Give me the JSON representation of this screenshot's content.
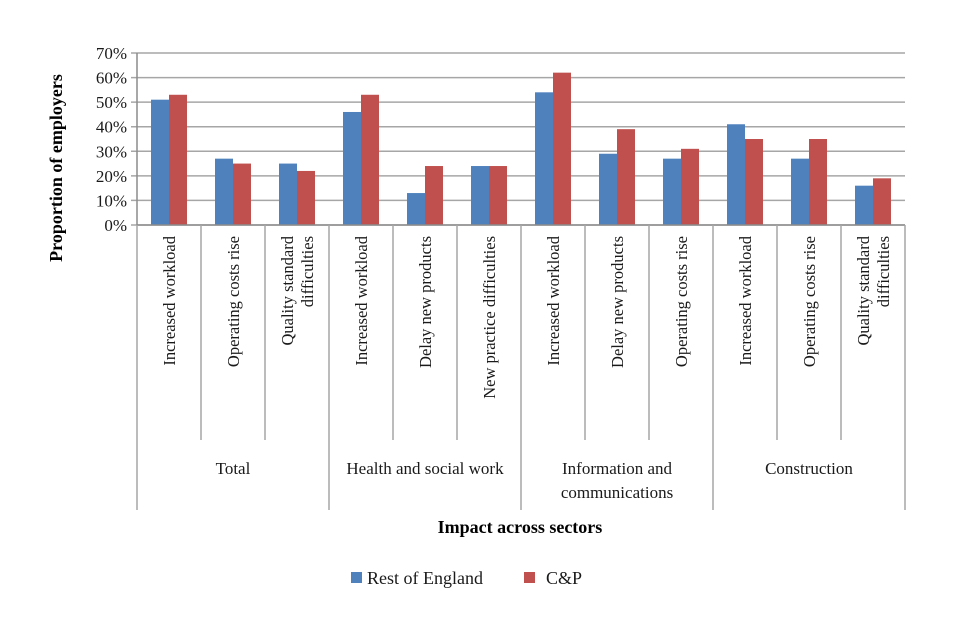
{
  "chart_data": {
    "type": "bar",
    "title": "",
    "xlabel": "Impact across sectors",
    "ylabel": "Proportion of employers",
    "ylim": [
      0,
      70
    ],
    "yticks": [
      "0%",
      "10%",
      "20%",
      "30%",
      "40%",
      "50%",
      "60%",
      "70%"
    ],
    "ytick_values": [
      0,
      10,
      20,
      30,
      40,
      50,
      60,
      70
    ],
    "grid": true,
    "legend_position": "bottom",
    "groups": [
      {
        "label": "Total",
        "label_lines": [
          "Total"
        ],
        "categories": [
          [
            "Increased workload"
          ],
          [
            "Operating costs rise"
          ],
          [
            "Quality standard",
            "difficulties"
          ]
        ]
      },
      {
        "label": "Health and social work",
        "label_lines": [
          "Health and social work"
        ],
        "categories": [
          [
            "Increased workload"
          ],
          [
            "Delay new products"
          ],
          [
            "New practice difficulties"
          ]
        ]
      },
      {
        "label": "Information and communications",
        "label_lines": [
          "Information and",
          "communications"
        ],
        "categories": [
          [
            "Increased workload"
          ],
          [
            "Delay new products"
          ],
          [
            "Operating costs rise"
          ]
        ]
      },
      {
        "label": "Construction",
        "label_lines": [
          "Construction"
        ],
        "categories": [
          [
            "Increased workload"
          ],
          [
            "Operating costs rise"
          ],
          [
            "Quality standard",
            "difficulties"
          ]
        ]
      }
    ],
    "categories": [
      "Total | Increased workload",
      "Total | Operating costs rise",
      "Total | Quality standard difficulties",
      "Health and social work | Increased workload",
      "Health and social work | Delay new products",
      "Health and social work | New practice difficulties",
      "Information and communications | Increased workload",
      "Information and communications | Delay new products",
      "Information and communications | Operating costs rise",
      "Construction | Increased workload",
      "Construction | Operating costs rise",
      "Construction | Quality standard difficulties"
    ],
    "series": [
      {
        "name": "Rest of England",
        "color": "#4f81bd",
        "values": [
          51,
          27,
          25,
          46,
          13,
          24,
          54,
          29,
          27,
          41,
          27,
          16
        ]
      },
      {
        "name": "C&P",
        "color": "#c0504d",
        "values": [
          53,
          25,
          22,
          53,
          24,
          24,
          62,
          39,
          31,
          35,
          35,
          19
        ]
      }
    ]
  },
  "colors": {
    "grid": "#a6a6a6",
    "axis": "#8c8c8c"
  }
}
